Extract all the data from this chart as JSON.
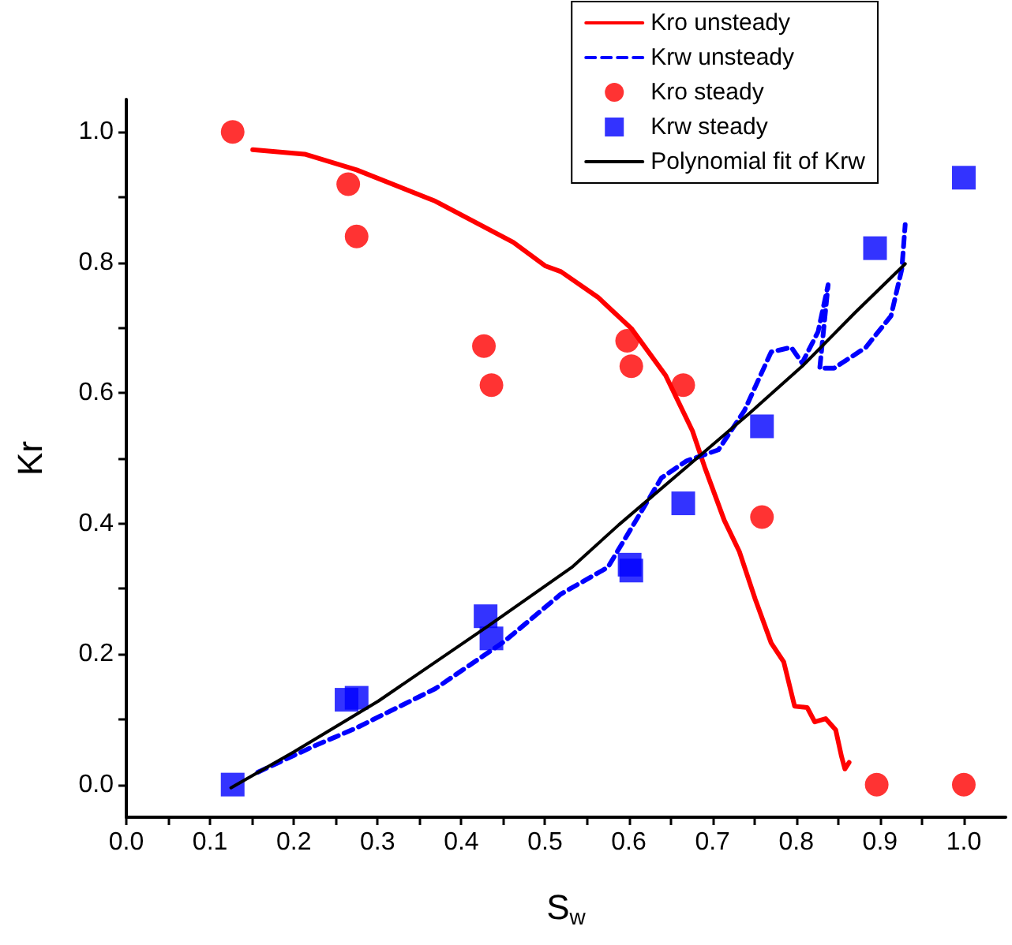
{
  "chart_data": {
    "type": "line",
    "xlabel": "S$_{w}$",
    "ylabel": "Kr",
    "legend": "top right",
    "grid": false,
    "xlim": [
      0,
      1.05
    ],
    "ylim": [
      -0.05,
      1.05
    ],
    "xticks": [
      {
        "value": 0,
        "label": "0.0"
      },
      {
        "value": 0.05,
        "label": null
      },
      {
        "value": 0.1,
        "label": "0.1"
      },
      {
        "value": 0.15,
        "label": null
      },
      {
        "value": 0.2,
        "label": "0.2"
      },
      {
        "value": 0.25,
        "label": null
      },
      {
        "value": 0.3,
        "label": "0.3"
      },
      {
        "value": 0.35,
        "label": null
      },
      {
        "value": 0.4,
        "label": "0.4"
      },
      {
        "value": 0.45,
        "label": null
      },
      {
        "value": 0.5,
        "label": "0.5"
      },
      {
        "value": 0.55,
        "label": null
      },
      {
        "value": 0.6,
        "label": "0.6"
      },
      {
        "value": 0.65,
        "label": null
      },
      {
        "value": 0.7,
        "label": "0.7"
      },
      {
        "value": 0.75,
        "label": null
      },
      {
        "value": 0.8,
        "label": "0.8"
      },
      {
        "value": 0.85,
        "label": null
      },
      {
        "value": 0.9,
        "label": "0.9"
      },
      {
        "value": 0.95,
        "label": null
      },
      {
        "value": 1,
        "label": "1.0"
      }
    ],
    "yticks": [
      {
        "value": 0,
        "label": "0.0"
      },
      {
        "value": 0.1,
        "label": null
      },
      {
        "value": 0.2,
        "label": "0.2"
      },
      {
        "value": 0.3,
        "label": null
      },
      {
        "value": 0.4,
        "label": "0.4"
      },
      {
        "value": 0.5,
        "label": null
      },
      {
        "value": 0.6,
        "label": "0.6"
      },
      {
        "value": 0.7,
        "label": null
      },
      {
        "value": 0.8,
        "label": "0.8"
      },
      {
        "value": 0.9,
        "label": null
      },
      {
        "value": 1,
        "label": "1.0"
      }
    ],
    "series": [
      {
        "name": "Kro unsteady",
        "color": "#ff0000",
        "marker": "none",
        "line_style": "solid",
        "x": [
          0.151,
          0.213,
          0.275,
          0.369,
          0.462,
          0.5,
          0.519,
          0.563,
          0.603,
          0.644,
          0.676,
          0.691,
          0.714,
          0.732,
          0.751,
          0.77,
          0.785,
          0.798,
          0.813,
          0.822,
          0.835,
          0.847,
          0.854,
          0.858,
          0.863
        ],
        "values": [
          0.973,
          0.966,
          0.942,
          0.894,
          0.831,
          0.795,
          0.786,
          0.747,
          0.699,
          0.627,
          0.542,
          0.485,
          0.405,
          0.357,
          0.284,
          0.217,
          0.188,
          0.12,
          0.118,
          0.096,
          0.101,
          0.084,
          0.043,
          0.024,
          0.034
        ]
      },
      {
        "name": "Krw unsteady",
        "color": "#0000ff",
        "marker": "none",
        "line_style": "dashed",
        "x": [
          0.157,
          0.226,
          0.275,
          0.369,
          0.451,
          0.519,
          0.575,
          0.639,
          0.669,
          0.707,
          0.738,
          0.77,
          0.794,
          0.807,
          0.826,
          0.838,
          0.828,
          0.845,
          0.883,
          0.913,
          0.926,
          0.93
        ],
        "values": [
          0.019,
          0.06,
          0.087,
          0.147,
          0.219,
          0.292,
          0.333,
          0.47,
          0.496,
          0.513,
          0.573,
          0.663,
          0.67,
          0.646,
          0.694,
          0.766,
          0.638,
          0.638,
          0.67,
          0.718,
          0.79,
          0.858
        ]
      },
      {
        "name": "Kro steady",
        "type": "scatter",
        "color": "#ff0000",
        "marker": "circle",
        "x": [
          0.127,
          0.265,
          0.275,
          0.427,
          0.436,
          0.598,
          0.603,
          0.665,
          0.759,
          0.896,
          1.0
        ],
        "values": [
          1.0,
          0.92,
          0.84,
          0.672,
          0.612,
          0.68,
          0.641,
          0.612,
          0.41,
          0,
          0
        ]
      },
      {
        "name": "Krw steady",
        "type": "scatter",
        "color": "#0000ff",
        "marker": "square",
        "x": [
          0.127,
          0.263,
          0.275,
          0.429,
          0.436,
          0.601,
          0.603,
          0.665,
          0.759,
          0.894,
          1.0
        ],
        "values": [
          0,
          0.13,
          0.133,
          0.258,
          0.224,
          0.337,
          0.328,
          0.431,
          0.549,
          0.822,
          0.93
        ]
      },
      {
        "name": "Polynomial fit of Krw",
        "color": "#000000",
        "marker": "none",
        "line_style": "solid",
        "x": [
          0.125,
          0.2,
          0.301,
          0.432,
          0.532,
          0.588,
          0.682,
          0.744,
          0.807,
          0.87,
          0.93
        ],
        "values": [
          -0.005,
          0.05,
          0.128,
          0.243,
          0.333,
          0.398,
          0.501,
          0.569,
          0.641,
          0.723,
          0.798
        ]
      }
    ]
  }
}
